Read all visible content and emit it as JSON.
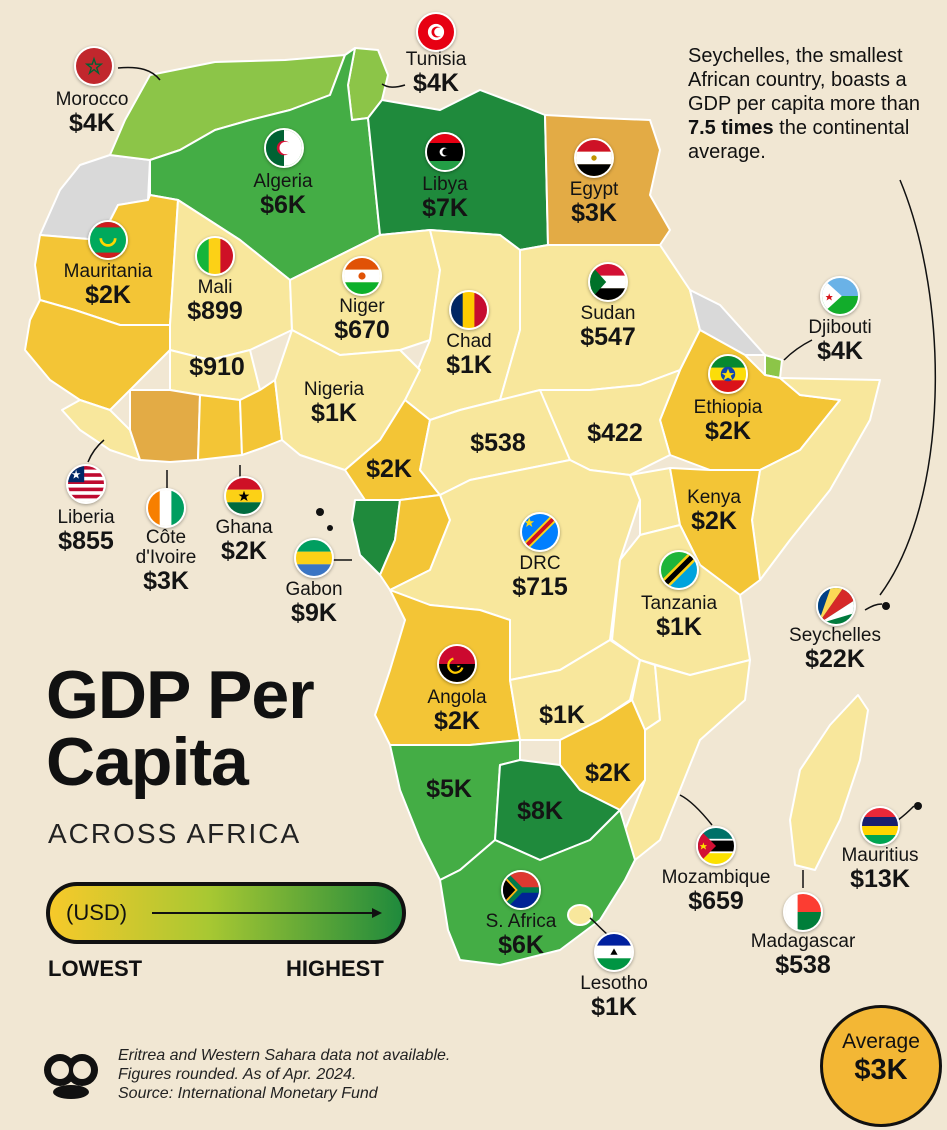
{
  "title_line1": "GDP Per",
  "title_line2": "Capita",
  "subtitle": "ACROSS AFRICA",
  "legend": {
    "unit": "(USD)",
    "low_label": "LOWEST",
    "high_label": "HIGHEST",
    "color_low": "#f7c92a",
    "color_high": "#1f8a3c"
  },
  "note": {
    "part1": "Seychelles, the smallest African country, boasts a GDP per capita more than ",
    "emphasis": "7.5 times",
    "part2": " the continental average."
  },
  "footnote": {
    "line1": "Eritrea and Western Sahara data not available.",
    "line2": "Figures rounded. As of Apr. 2024.",
    "line3": "Source: International Monetary Fund"
  },
  "average": {
    "label": "Average",
    "value": "$3K"
  },
  "colors": {
    "background": "#f1e7d3",
    "very_low": "#f8e79c",
    "low": "#f3c536",
    "mid_low": "#e3ab45",
    "mid": "#8cc548",
    "high": "#44ad45",
    "very_high": "#1f8a3c",
    "no_data": "#d9d9d9"
  },
  "countries": [
    {
      "name": "Morocco",
      "value": "$4K",
      "flag": "morocco-flag"
    },
    {
      "name": "Tunisia",
      "value": "$4K",
      "flag": "tunisia-flag"
    },
    {
      "name": "Algeria",
      "value": "$6K",
      "flag": "algeria-flag"
    },
    {
      "name": "Libya",
      "value": "$7K",
      "flag": "libya-flag"
    },
    {
      "name": "Egypt",
      "value": "$3K",
      "flag": "egypt-flag"
    },
    {
      "name": "Mauritania",
      "value": "$2K",
      "flag": "mauritania-flag"
    },
    {
      "name": "Mali",
      "value": "$899",
      "flag": "mali-flag"
    },
    {
      "name": "Niger",
      "value": "$670",
      "flag": "niger-flag"
    },
    {
      "name": "Chad",
      "value": "$1K",
      "flag": "chad-flag"
    },
    {
      "name": "Sudan",
      "value": "$547",
      "flag": "sudan-flag"
    },
    {
      "name": "Djibouti",
      "value": "$4K",
      "flag": "djibouti-flag"
    },
    {
      "name": "Ethiopia",
      "value": "$2K",
      "flag": "ethiopia-flag"
    },
    {
      "name": "Nigeria",
      "value": "$1K",
      "flag": ""
    },
    {
      "name": "Liberia",
      "value": "$855",
      "flag": "liberia-flag"
    },
    {
      "name": "Côte d'Ivoire",
      "value": "$3K",
      "flag": "cote-divoire-flag"
    },
    {
      "name": "Ghana",
      "value": "$2K",
      "flag": "ghana-flag"
    },
    {
      "name": "Gabon",
      "value": "$9K",
      "flag": "gabon-flag"
    },
    {
      "name": "DRC",
      "value": "$715",
      "flag": "drc-flag"
    },
    {
      "name": "Kenya",
      "value": "$2K",
      "flag": ""
    },
    {
      "name": "Tanzania",
      "value": "$1K",
      "flag": "tanzania-flag"
    },
    {
      "name": "Seychelles",
      "value": "$22K",
      "flag": "seychelles-flag"
    },
    {
      "name": "Angola",
      "value": "$2K",
      "flag": "angola-flag"
    },
    {
      "name": "Mozambique",
      "value": "$659",
      "flag": "mozambique-flag"
    },
    {
      "name": "Mauritius",
      "value": "$13K",
      "flag": "mauritius-flag"
    },
    {
      "name": "Madagascar",
      "value": "$538",
      "flag": "madagascar-flag"
    },
    {
      "name": "S. Africa",
      "value": "$6K",
      "flag": "south-africa-flag"
    },
    {
      "name": "Lesotho",
      "value": "$1K",
      "flag": "lesotho-flag"
    }
  ],
  "unnamed_values": {
    "burkina_faso": "$910",
    "cameroon": "$2K",
    "central_african_republic": "$538",
    "south_sudan": "$422",
    "zambia": "$1K",
    "zimbabwe": "$2K",
    "namibia": "$5K",
    "botswana": "$8K"
  }
}
